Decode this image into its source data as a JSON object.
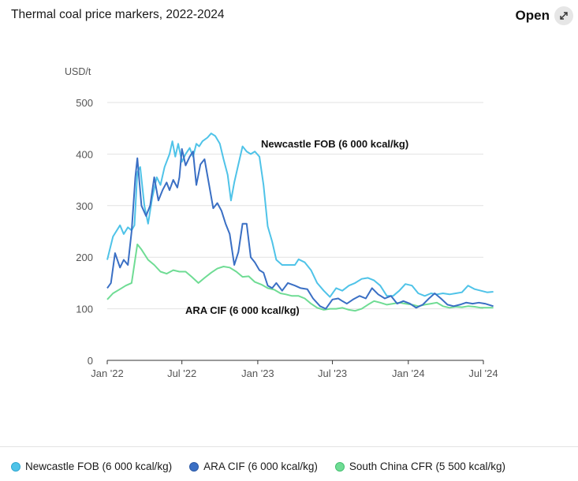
{
  "header": {
    "title": "Thermal coal price markers, 2022-2024",
    "open_label": "Open",
    "open_icon": "expand-arrows-icon"
  },
  "chart_data": {
    "type": "line",
    "title": "Thermal coal price markers, 2022-2024",
    "ylabel": "USD/t",
    "ylim": [
      0,
      500
    ],
    "yticks": [
      "0",
      "100",
      "200",
      "300",
      "400",
      "500"
    ],
    "xlim": [
      "2022-01",
      "2024-07"
    ],
    "xticks": [
      "Jan '22",
      "Jul '22",
      "Jan '23",
      "Jul '23",
      "Jan '24",
      "Jul '24"
    ],
    "grid": "horizontal",
    "legend_position": "bottom",
    "annotations": [
      {
        "text": "Newcastle FOB (6 000 kcal/kg)",
        "series": "Newcastle FOB (6 000 kcal/kg)"
      },
      {
        "text": "ARA CIF (6 000 kcal/kg)",
        "series": "ARA CIF (6 000 kcal/kg)"
      }
    ],
    "series": [
      {
        "name": "Newcastle FOB (6 000 kcal/kg)",
        "color": "#4fc3e8",
        "points": [
          [
            "2022-01-01",
            195
          ],
          [
            "2022-01-15",
            240
          ],
          [
            "2022-02-01",
            262
          ],
          [
            "2022-02-10",
            245
          ],
          [
            "2022-02-20",
            258
          ],
          [
            "2022-03-01",
            252
          ],
          [
            "2022-03-08",
            262
          ],
          [
            "2022-03-15",
            365
          ],
          [
            "2022-03-22",
            375
          ],
          [
            "2022-04-01",
            300
          ],
          [
            "2022-04-10",
            265
          ],
          [
            "2022-04-20",
            315
          ],
          [
            "2022-05-01",
            355
          ],
          [
            "2022-05-10",
            340
          ],
          [
            "2022-05-20",
            375
          ],
          [
            "2022-06-01",
            400
          ],
          [
            "2022-06-08",
            425
          ],
          [
            "2022-06-15",
            395
          ],
          [
            "2022-06-22",
            420
          ],
          [
            "2022-07-01",
            385
          ],
          [
            "2022-07-10",
            400
          ],
          [
            "2022-07-20",
            412
          ],
          [
            "2022-07-28",
            395
          ],
          [
            "2022-08-05",
            420
          ],
          [
            "2022-08-12",
            415
          ],
          [
            "2022-08-20",
            425
          ],
          [
            "2022-09-01",
            432
          ],
          [
            "2022-09-10",
            440
          ],
          [
            "2022-09-20",
            435
          ],
          [
            "2022-10-01",
            420
          ],
          [
            "2022-10-10",
            390
          ],
          [
            "2022-10-20",
            360
          ],
          [
            "2022-10-28",
            310
          ],
          [
            "2022-11-05",
            345
          ],
          [
            "2022-11-15",
            380
          ],
          [
            "2022-11-25",
            415
          ],
          [
            "2022-12-05",
            405
          ],
          [
            "2022-12-15",
            400
          ],
          [
            "2022-12-25",
            405
          ],
          [
            "2023-01-05",
            395
          ],
          [
            "2023-01-15",
            340
          ],
          [
            "2023-01-25",
            260
          ],
          [
            "2023-02-05",
            230
          ],
          [
            "2023-02-15",
            195
          ],
          [
            "2023-03-01",
            185
          ],
          [
            "2023-03-15",
            185
          ],
          [
            "2023-04-01",
            185
          ],
          [
            "2023-04-10",
            196
          ],
          [
            "2023-04-25",
            190
          ],
          [
            "2023-05-10",
            175
          ],
          [
            "2023-05-25",
            150
          ],
          [
            "2023-06-10",
            135
          ],
          [
            "2023-06-25",
            123
          ],
          [
            "2023-07-10",
            140
          ],
          [
            "2023-07-25",
            135
          ],
          [
            "2023-08-10",
            145
          ],
          [
            "2023-08-25",
            150
          ],
          [
            "2023-09-10",
            158
          ],
          [
            "2023-09-25",
            160
          ],
          [
            "2023-10-10",
            155
          ],
          [
            "2023-10-25",
            145
          ],
          [
            "2023-11-10",
            125
          ],
          [
            "2023-11-25",
            125
          ],
          [
            "2023-12-10",
            135
          ],
          [
            "2023-12-25",
            148
          ],
          [
            "2024-01-10",
            145
          ],
          [
            "2024-01-25",
            130
          ],
          [
            "2024-02-10",
            125
          ],
          [
            "2024-02-25",
            130
          ],
          [
            "2024-03-10",
            128
          ],
          [
            "2024-03-25",
            130
          ],
          [
            "2024-04-10",
            128
          ],
          [
            "2024-04-25",
            130
          ],
          [
            "2024-05-10",
            132
          ],
          [
            "2024-05-25",
            145
          ],
          [
            "2024-06-10",
            138
          ],
          [
            "2024-06-25",
            135
          ],
          [
            "2024-07-10",
            132
          ],
          [
            "2024-07-25",
            133
          ]
        ]
      },
      {
        "name": "ARA CIF (6 000 kcal/kg)",
        "color": "#3a6fc4",
        "points": [
          [
            "2022-01-01",
            140
          ],
          [
            "2022-01-10",
            150
          ],
          [
            "2022-01-20",
            208
          ],
          [
            "2022-02-01",
            180
          ],
          [
            "2022-02-10",
            195
          ],
          [
            "2022-02-20",
            185
          ],
          [
            "2022-03-01",
            250
          ],
          [
            "2022-03-10",
            355
          ],
          [
            "2022-03-15",
            392
          ],
          [
            "2022-03-25",
            300
          ],
          [
            "2022-04-05",
            280
          ],
          [
            "2022-04-15",
            300
          ],
          [
            "2022-04-25",
            355
          ],
          [
            "2022-05-05",
            310
          ],
          [
            "2022-05-15",
            330
          ],
          [
            "2022-05-25",
            345
          ],
          [
            "2022-06-01",
            330
          ],
          [
            "2022-06-10",
            350
          ],
          [
            "2022-06-20",
            335
          ],
          [
            "2022-06-25",
            355
          ],
          [
            "2022-07-01",
            410
          ],
          [
            "2022-07-10",
            378
          ],
          [
            "2022-07-20",
            395
          ],
          [
            "2022-07-28",
            405
          ],
          [
            "2022-08-05",
            340
          ],
          [
            "2022-08-15",
            380
          ],
          [
            "2022-08-25",
            390
          ],
          [
            "2022-09-05",
            340
          ],
          [
            "2022-09-15",
            295
          ],
          [
            "2022-09-25",
            305
          ],
          [
            "2022-10-05",
            290
          ],
          [
            "2022-10-15",
            265
          ],
          [
            "2022-10-25",
            245
          ],
          [
            "2022-11-05",
            185
          ],
          [
            "2022-11-15",
            210
          ],
          [
            "2022-11-25",
            265
          ],
          [
            "2022-12-05",
            265
          ],
          [
            "2022-12-15",
            200
          ],
          [
            "2022-12-25",
            190
          ],
          [
            "2023-01-05",
            175
          ],
          [
            "2023-01-15",
            170
          ],
          [
            "2023-01-25",
            145
          ],
          [
            "2023-02-05",
            140
          ],
          [
            "2023-02-15",
            150
          ],
          [
            "2023-03-01",
            135
          ],
          [
            "2023-03-15",
            150
          ],
          [
            "2023-04-01",
            145
          ],
          [
            "2023-04-15",
            140
          ],
          [
            "2023-05-01",
            138
          ],
          [
            "2023-05-15",
            120
          ],
          [
            "2023-06-01",
            105
          ],
          [
            "2023-06-15",
            100
          ],
          [
            "2023-07-01",
            118
          ],
          [
            "2023-07-15",
            120
          ],
          [
            "2023-07-25",
            115
          ],
          [
            "2023-08-05",
            110
          ],
          [
            "2023-08-20",
            118
          ],
          [
            "2023-09-05",
            125
          ],
          [
            "2023-09-20",
            120
          ],
          [
            "2023-10-05",
            140
          ],
          [
            "2023-10-20",
            128
          ],
          [
            "2023-11-05",
            120
          ],
          [
            "2023-11-20",
            125
          ],
          [
            "2023-12-05",
            110
          ],
          [
            "2023-12-20",
            115
          ],
          [
            "2024-01-05",
            110
          ],
          [
            "2024-01-20",
            102
          ],
          [
            "2024-02-05",
            108
          ],
          [
            "2024-02-20",
            120
          ],
          [
            "2024-03-05",
            130
          ],
          [
            "2024-03-20",
            120
          ],
          [
            "2024-04-05",
            108
          ],
          [
            "2024-04-20",
            105
          ],
          [
            "2024-05-05",
            108
          ],
          [
            "2024-05-20",
            112
          ],
          [
            "2024-06-05",
            110
          ],
          [
            "2024-06-20",
            112
          ],
          [
            "2024-07-05",
            110
          ],
          [
            "2024-07-25",
            105
          ]
        ]
      },
      {
        "name": "South China CFR (5 500 kcal/kg)",
        "color": "#6fdc94",
        "points": [
          [
            "2022-01-01",
            118
          ],
          [
            "2022-01-15",
            130
          ],
          [
            "2022-02-01",
            138
          ],
          [
            "2022-02-15",
            145
          ],
          [
            "2022-03-01",
            150
          ],
          [
            "2022-03-15",
            225
          ],
          [
            "2022-03-25",
            215
          ],
          [
            "2022-04-10",
            195
          ],
          [
            "2022-04-25",
            185
          ],
          [
            "2022-05-10",
            172
          ],
          [
            "2022-05-25",
            168
          ],
          [
            "2022-06-10",
            175
          ],
          [
            "2022-06-25",
            172
          ],
          [
            "2022-07-10",
            172
          ],
          [
            "2022-07-25",
            162
          ],
          [
            "2022-08-10",
            150
          ],
          [
            "2022-08-25",
            160
          ],
          [
            "2022-09-10",
            170
          ],
          [
            "2022-09-25",
            178
          ],
          [
            "2022-10-10",
            182
          ],
          [
            "2022-10-25",
            180
          ],
          [
            "2022-11-10",
            172
          ],
          [
            "2022-11-25",
            162
          ],
          [
            "2022-12-10",
            163
          ],
          [
            "2022-12-25",
            152
          ],
          [
            "2023-01-10",
            147
          ],
          [
            "2023-01-25",
            140
          ],
          [
            "2023-02-10",
            137
          ],
          [
            "2023-02-25",
            130
          ],
          [
            "2023-03-10",
            128
          ],
          [
            "2023-03-25",
            125
          ],
          [
            "2023-04-10",
            125
          ],
          [
            "2023-04-25",
            120
          ],
          [
            "2023-05-10",
            110
          ],
          [
            "2023-05-25",
            102
          ],
          [
            "2023-06-10",
            98
          ],
          [
            "2023-06-25",
            100
          ],
          [
            "2023-07-10",
            100
          ],
          [
            "2023-07-25",
            102
          ],
          [
            "2023-08-10",
            98
          ],
          [
            "2023-08-25",
            96
          ],
          [
            "2023-09-10",
            100
          ],
          [
            "2023-09-25",
            108
          ],
          [
            "2023-10-10",
            115
          ],
          [
            "2023-10-25",
            112
          ],
          [
            "2023-11-10",
            108
          ],
          [
            "2023-11-25",
            110
          ],
          [
            "2023-12-10",
            112
          ],
          [
            "2023-12-25",
            110
          ],
          [
            "2024-01-10",
            108
          ],
          [
            "2024-01-25",
            105
          ],
          [
            "2024-02-10",
            108
          ],
          [
            "2024-02-25",
            110
          ],
          [
            "2024-03-10",
            112
          ],
          [
            "2024-03-25",
            105
          ],
          [
            "2024-04-10",
            102
          ],
          [
            "2024-04-25",
            104
          ],
          [
            "2024-05-10",
            103
          ],
          [
            "2024-05-25",
            105
          ],
          [
            "2024-06-10",
            104
          ],
          [
            "2024-06-25",
            102
          ],
          [
            "2024-07-10",
            102
          ],
          [
            "2024-07-25",
            102
          ]
        ]
      }
    ]
  },
  "legend": [
    {
      "label": "Newcastle FOB (6 000 kcal/kg)",
      "color": "#4fc3e8"
    },
    {
      "label": "ARA CIF (6 000 kcal/kg)",
      "color": "#3a6fc4"
    },
    {
      "label": "South China CFR (5 500 kcal/kg)",
      "color": "#6fdc94"
    }
  ]
}
